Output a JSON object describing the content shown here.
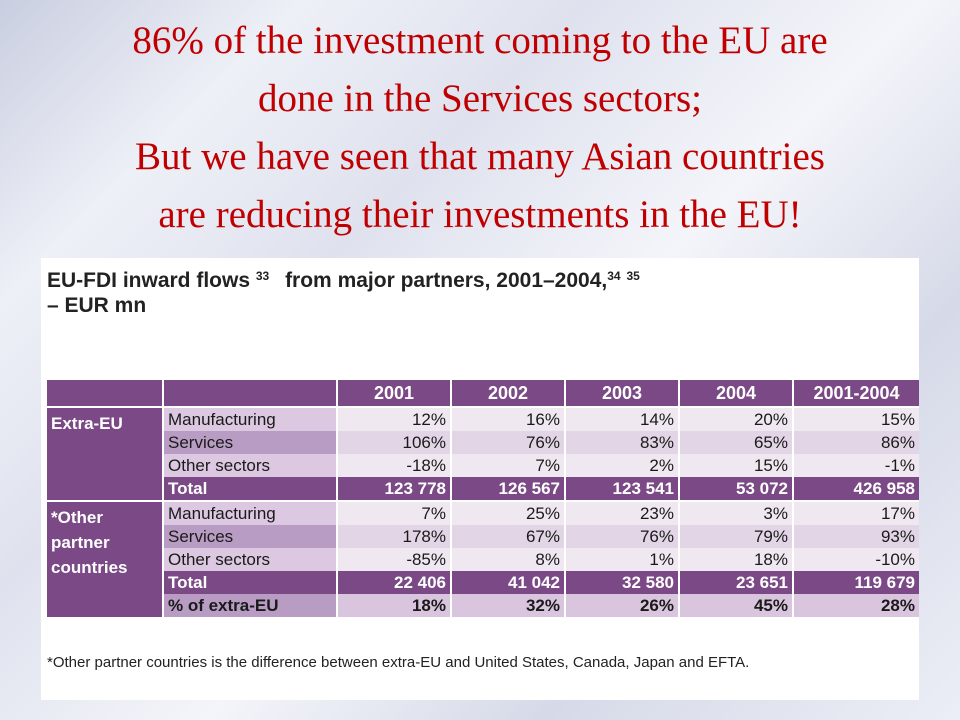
{
  "slide": {
    "title_lines": [
      "86% of the investment coming to the EU are",
      "done in the Services sectors;",
      "But we have seen that many Asian countries",
      "are reducing their investments in the EU!"
    ]
  },
  "table": {
    "title_part1": "EU-FDI inward flows",
    "sup1": "33",
    "title_part2": "from major partners, 2001–2004,",
    "sup2": "34",
    "sup3": "35",
    "title_line2": "– EUR mn",
    "columns": [
      "2001",
      "2002",
      "2003",
      "2004",
      "2001-2004"
    ],
    "extra_eu": {
      "label": "Extra-EU",
      "rows": [
        {
          "label": "Manufacturing",
          "values": [
            "12%",
            "16%",
            "14%",
            "20%",
            "15%"
          ]
        },
        {
          "label": "Services",
          "values": [
            "106%",
            "76%",
            "83%",
            "65%",
            "86%"
          ]
        },
        {
          "label": "Other sectors",
          "values": [
            "-18%",
            "7%",
            "2%",
            "15%",
            "-1%"
          ]
        },
        {
          "label": "Total",
          "values": [
            "123 778",
            "126 567",
            "123 541",
            "53 072",
            "426 958"
          ]
        }
      ]
    },
    "other_partners": {
      "label": "*Other partner countries",
      "rows": [
        {
          "label": "Manufacturing",
          "values": [
            "7%",
            "25%",
            "23%",
            "3%",
            "17%"
          ]
        },
        {
          "label": "Services",
          "values": [
            "178%",
            "67%",
            "76%",
            "79%",
            "93%"
          ]
        },
        {
          "label": "Other sectors",
          "values": [
            "-85%",
            "8%",
            "1%",
            "18%",
            "-10%"
          ]
        },
        {
          "label": "Total",
          "values": [
            "22 406",
            "41 042",
            "32 580",
            "23 651",
            "119 679"
          ]
        },
        {
          "label": "% of extra-EU",
          "values": [
            "18%",
            "32%",
            "26%",
            "45%",
            "28%"
          ]
        }
      ]
    },
    "footnote": "*Other partner countries is the difference between extra-EU and United States, Canada, Japan and EFTA."
  }
}
